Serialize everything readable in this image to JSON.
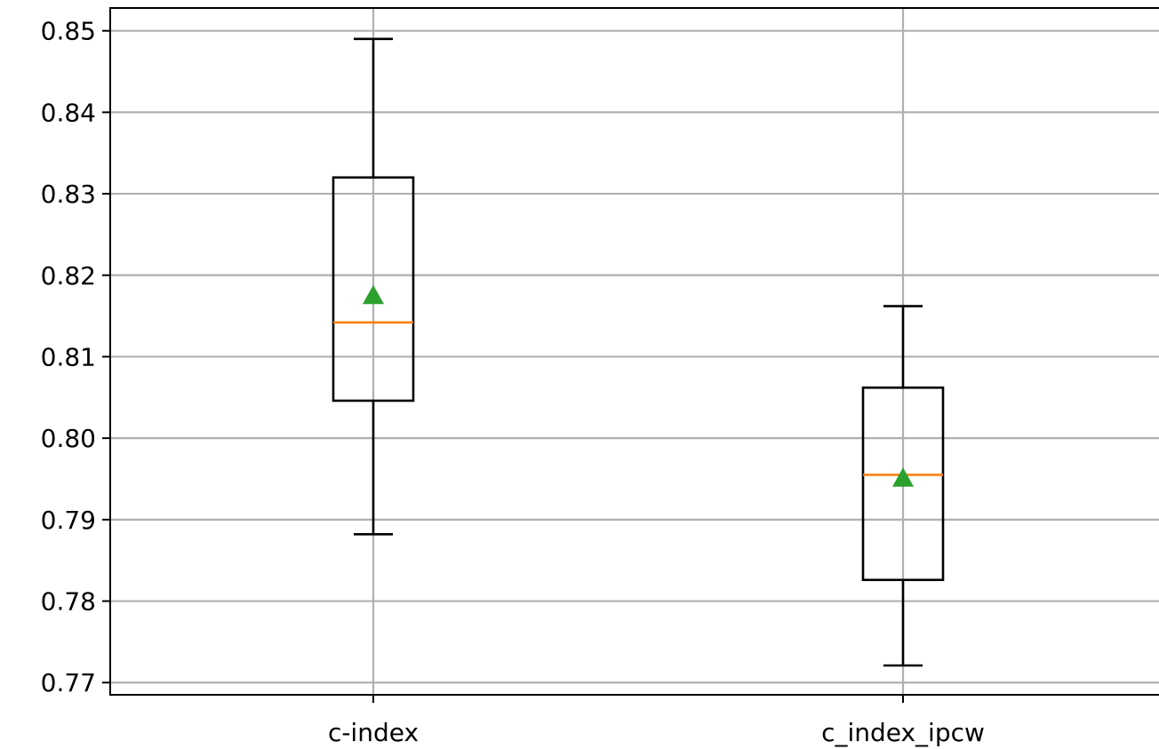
{
  "chart_data": {
    "type": "box",
    "categories": [
      "c-index",
      "c_index_ipcw"
    ],
    "boxes": [
      {
        "category": "c-index",
        "whisker_low": 0.7882,
        "q1": 0.8046,
        "median": 0.8142,
        "q3": 0.832,
        "whisker_high": 0.849,
        "mean": 0.8175
      },
      {
        "category": "c_index_ipcw",
        "whisker_low": 0.7721,
        "q1": 0.7826,
        "median": 0.7955,
        "q3": 0.8062,
        "whisker_high": 0.8162,
        "mean": 0.7951
      }
    ],
    "yticks": [
      0.77,
      0.78,
      0.79,
      0.8,
      0.81,
      0.82,
      0.83,
      0.84,
      0.85
    ],
    "ytick_labels": [
      "0.77",
      "0.78",
      "0.79",
      "0.80",
      "0.81",
      "0.82",
      "0.83",
      "0.84",
      "0.85"
    ],
    "ylim": [
      0.7685,
      0.8528
    ],
    "grid": true,
    "colors": {
      "median": "#ff7f0e",
      "mean": "#2ca02c",
      "box": "#000000",
      "grid": "#b0b0b0"
    }
  }
}
